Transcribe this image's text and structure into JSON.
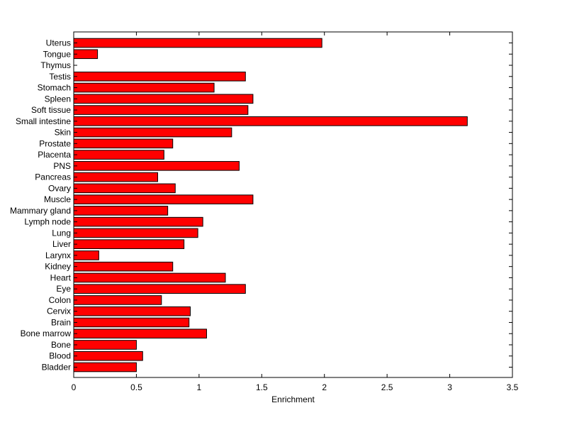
{
  "chart_data": {
    "type": "bar",
    "orientation": "horizontal",
    "title": "",
    "xlabel": "Enrichment",
    "ylabel": "",
    "xlim": [
      0,
      3.5
    ],
    "xticks": [
      "0",
      "0.5",
      "1",
      "1.5",
      "2",
      "2.5",
      "3",
      "3.5"
    ],
    "grid": false,
    "bar_color": "#ff0000",
    "categories": [
      "Bladder",
      "Blood",
      "Bone",
      "Bone marrow",
      "Brain",
      "Cervix",
      "Colon",
      "Eye",
      "Heart",
      "Kidney",
      "Larynx",
      "Liver",
      "Lung",
      "Lymph node",
      "Mammary gland",
      "Muscle",
      "Ovary",
      "Pancreas",
      "PNS",
      "Placenta",
      "Prostate",
      "Skin",
      "Small intestine",
      "Soft tissue",
      "Spleen",
      "Stomach",
      "Testis",
      "Thymus",
      "Tongue",
      "Uterus"
    ],
    "values": [
      0.5,
      0.55,
      0.5,
      1.06,
      0.92,
      0.93,
      0.7,
      1.37,
      1.21,
      0.79,
      0.2,
      0.88,
      0.99,
      1.03,
      0.75,
      1.43,
      0.81,
      0.67,
      1.32,
      0.72,
      0.79,
      1.26,
      3.14,
      1.39,
      1.43,
      1.12,
      1.37,
      0.0,
      0.19,
      1.98
    ]
  }
}
